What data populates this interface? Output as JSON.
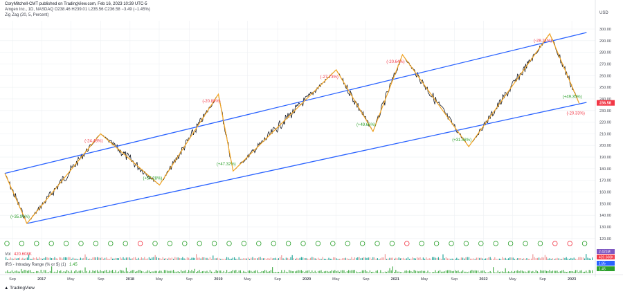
{
  "header": {
    "publisher": "CoryMitchell-CMT published on TradingView.com, Feb 16, 2023 10:39 UTC-5",
    "symbol_line": "Amgen Inc., 1D, NASDAQ  O238.46  H239.01  L235.56  C236.58  −3.49 (−1.45%)",
    "indicator": "Zig Zag (20, 5, Percent)"
  },
  "price_axis": {
    "currency": "USD",
    "ticks": [
      "300.00",
      "290.00",
      "280.00",
      "270.00",
      "260.00",
      "250.00",
      "240.00",
      "230.00",
      "220.00",
      "210.00",
      "200.00",
      "190.00",
      "180.00",
      "170.00",
      "160.00",
      "150.00",
      "140.00",
      "130.00",
      "120.00"
    ],
    "last_price": "236.58",
    "last_price_color": "#f23645"
  },
  "time_axis": {
    "labels": [
      "Sep",
      "2017",
      "May",
      "Sep",
      "2018",
      "May",
      "Sep",
      "2019",
      "May",
      "Sep",
      "2020",
      "May",
      "Sep",
      "2021",
      "May",
      "Sep",
      "2022",
      "May",
      "Sep",
      "2023"
    ]
  },
  "volume_pane": {
    "label": "Vol",
    "value": "420.608K",
    "axis_badges": [
      "2.421M",
      "420.608K"
    ]
  },
  "irs_pane": {
    "label": "IRS - Intraday Range (% or $) (1)",
    "value": "1.45",
    "axis_badges": [
      "1.85",
      "1.45"
    ]
  },
  "footer": {
    "logo": "TradingView"
  },
  "colors": {
    "channel": "#2962ff",
    "zigzag": "#f5a623",
    "up_label": "#2ca02c",
    "down_label": "#f23645",
    "candles": "#131722",
    "volume": "#26a69a",
    "grid": "#eef0f3"
  },
  "chart_data": {
    "type": "line",
    "title": "Amgen Inc., 1D, NASDAQ",
    "x_labels": [
      "Sep",
      "2017",
      "May",
      "Sep",
      "2018",
      "May",
      "Sep",
      "2019",
      "May",
      "Sep",
      "2020",
      "May",
      "Sep",
      "2021",
      "May",
      "Sep",
      "2022",
      "May",
      "Sep",
      "2023"
    ],
    "ylim": [
      120,
      305
    ],
    "zigzag": [
      {
        "date": "2016-08",
        "value": 176,
        "label": ""
      },
      {
        "date": "2016-11",
        "value": 133,
        "label": "(+35.94%)"
      },
      {
        "date": "2017-09",
        "value": 210,
        "label": "(-24.43%)"
      },
      {
        "date": "2018-05",
        "value": 166,
        "label": "(+57.28%)"
      },
      {
        "date": "2019-01",
        "value": 244,
        "label": "(-20.88%)"
      },
      {
        "date": "2019-03",
        "value": 178,
        "label": "(+47.32%)"
      },
      {
        "date": "2020-05",
        "value": 265,
        "label": "(-27.73%)"
      },
      {
        "date": "2020-10",
        "value": 212,
        "label": "(+49.66%)"
      },
      {
        "date": "2021-02",
        "value": 278,
        "label": "(-20.64%)"
      },
      {
        "date": "2021-11",
        "value": 199,
        "label": "(+31.58%)"
      },
      {
        "date": "2022-10",
        "value": 296,
        "label": "(-28.21%)"
      },
      {
        "date": "2023-02",
        "value": 236,
        "label": "(+49.35%)"
      }
    ],
    "zigzag_extra_label": "(-20.33%)",
    "channel_upper": {
      "start": {
        "date": "2016-08",
        "value": 176
      },
      "end": {
        "date": "2023-03",
        "value": 297
      }
    },
    "channel_lower": {
      "start": {
        "date": "2016-11",
        "value": 133
      },
      "end": {
        "date": "2023-03",
        "value": 237
      }
    }
  }
}
